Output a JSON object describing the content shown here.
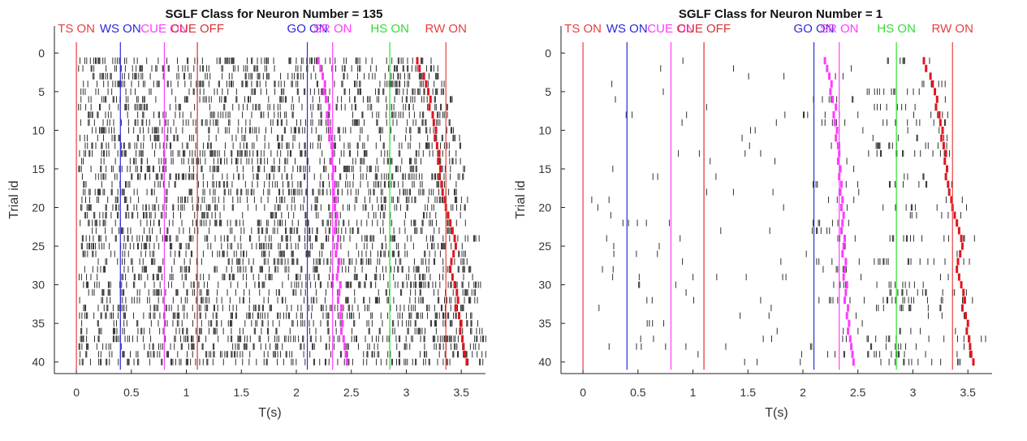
{
  "chart_data": [
    {
      "type": "raster",
      "title": "SGLF Class for Neuron Number = 135",
      "xlabel": "T(s)",
      "ylabel": "Trial id",
      "xlim": [
        -0.2,
        3.72
      ],
      "ylim": [
        41.5,
        -3.5
      ],
      "xticks": [
        "0",
        "0.5",
        "1",
        "1.5",
        "2",
        "2.5",
        "3",
        "3.5"
      ],
      "xtick_values": [
        0,
        0.5,
        1,
        1.5,
        2,
        2.5,
        3,
        3.5
      ],
      "yticks": [
        "0",
        "5",
        "10",
        "15",
        "20",
        "25",
        "30",
        "35",
        "40"
      ],
      "ytick_values": [
        0,
        5,
        10,
        15,
        20,
        25,
        30,
        35,
        40
      ],
      "grid": false,
      "n_trials": 40,
      "spike_density": "high",
      "spike_color": "#303030",
      "event_lines": [
        {
          "label": "TS ON",
          "t": 0.0,
          "color": "#e64040"
        },
        {
          "label": "WS ON",
          "t": 0.4,
          "color": "#2a2ad8"
        },
        {
          "label": "CUE ON",
          "t": 0.8,
          "color": "#ff3cff"
        },
        {
          "label": "CUE OFF",
          "t": 1.1,
          "color": "#d83030"
        },
        {
          "label": "GO ON",
          "t": 2.1,
          "color": "#2a2ad8"
        },
        {
          "label": "SR ON",
          "t": 2.33,
          "color": "#ff3cff"
        },
        {
          "label": "HS ON",
          "t": 2.85,
          "color": "#33dd33"
        },
        {
          "label": "RW ON",
          "t": 3.36,
          "color": "#e64040"
        }
      ],
      "trial_markers": [
        {
          "name": "SR ON",
          "color": "#ff3cff",
          "values": [
            2.2,
            2.22,
            2.24,
            2.26,
            2.25,
            2.27,
            2.3,
            2.28,
            2.29,
            2.31,
            2.3,
            2.32,
            2.33,
            2.32,
            2.34,
            2.33,
            2.35,
            2.34,
            2.36,
            2.35,
            2.37,
            2.36,
            2.35,
            2.38,
            2.37,
            2.36,
            2.39,
            2.38,
            2.37,
            2.4,
            2.39,
            2.38,
            2.41,
            2.4,
            2.42,
            2.41,
            2.43,
            2.44,
            2.45,
            2.46
          ]
        },
        {
          "name": "RW ON",
          "color": "#e0161d",
          "values": [
            3.1,
            3.12,
            3.16,
            3.18,
            3.2,
            3.22,
            3.21,
            3.24,
            3.25,
            3.27,
            3.26,
            3.28,
            3.3,
            3.29,
            3.31,
            3.3,
            3.32,
            3.33,
            3.35,
            3.36,
            3.38,
            3.4,
            3.42,
            3.44,
            3.45,
            3.43,
            3.41,
            3.4,
            3.42,
            3.44,
            3.46,
            3.47,
            3.45,
            3.48,
            3.5,
            3.49,
            3.51,
            3.52,
            3.53,
            3.55
          ]
        }
      ]
    },
    {
      "type": "raster",
      "title": "SGLF Class for Neuron Number = 1",
      "xlabel": "T(s)",
      "ylabel": "Trial id",
      "xlim": [
        -0.2,
        3.72
      ],
      "ylim": [
        41.5,
        -3.5
      ],
      "xticks": [
        "0",
        "0.5",
        "1",
        "1.5",
        "2",
        "2.5",
        "3",
        "3.5"
      ],
      "xtick_values": [
        0,
        0.5,
        1,
        1.5,
        2,
        2.5,
        3,
        3.5
      ],
      "yticks": [
        "0",
        "5",
        "10",
        "15",
        "20",
        "25",
        "30",
        "35",
        "40"
      ],
      "ytick_values": [
        0,
        5,
        10,
        15,
        20,
        25,
        30,
        35,
        40
      ],
      "grid": false,
      "n_trials": 40,
      "spike_density": "low",
      "spike_color": "#303030",
      "event_lines": [
        {
          "label": "TS ON",
          "t": 0.0,
          "color": "#e64040"
        },
        {
          "label": "WS ON",
          "t": 0.4,
          "color": "#2a2ad8"
        },
        {
          "label": "CUE ON",
          "t": 0.8,
          "color": "#ff3cff"
        },
        {
          "label": "CUE OFF",
          "t": 1.1,
          "color": "#d83030"
        },
        {
          "label": "GO ON",
          "t": 2.1,
          "color": "#2a2ad8"
        },
        {
          "label": "SR ON",
          "t": 2.33,
          "color": "#ff3cff"
        },
        {
          "label": "HS ON",
          "t": 2.85,
          "color": "#33dd33"
        },
        {
          "label": "RW ON",
          "t": 3.36,
          "color": "#e64040"
        }
      ],
      "trial_markers": [
        {
          "name": "SR ON",
          "color": "#ff3cff",
          "values": [
            2.2,
            2.22,
            2.24,
            2.26,
            2.25,
            2.27,
            2.3,
            2.28,
            2.29,
            2.31,
            2.3,
            2.32,
            2.33,
            2.32,
            2.34,
            2.33,
            2.35,
            2.34,
            2.36,
            2.35,
            2.37,
            2.36,
            2.35,
            2.38,
            2.37,
            2.36,
            2.39,
            2.38,
            2.37,
            2.4,
            2.39,
            2.38,
            2.41,
            2.4,
            2.42,
            2.41,
            2.43,
            2.44,
            2.45,
            2.46
          ]
        },
        {
          "name": "RW ON",
          "color": "#e0161d",
          "values": [
            3.1,
            3.12,
            3.16,
            3.18,
            3.2,
            3.22,
            3.21,
            3.24,
            3.25,
            3.27,
            3.26,
            3.28,
            3.3,
            3.29,
            3.31,
            3.3,
            3.32,
            3.33,
            3.35,
            3.36,
            3.38,
            3.4,
            3.42,
            3.44,
            3.45,
            3.43,
            3.41,
            3.4,
            3.42,
            3.44,
            3.46,
            3.47,
            3.45,
            3.48,
            3.5,
            3.49,
            3.51,
            3.52,
            3.53,
            3.55
          ]
        }
      ]
    }
  ]
}
